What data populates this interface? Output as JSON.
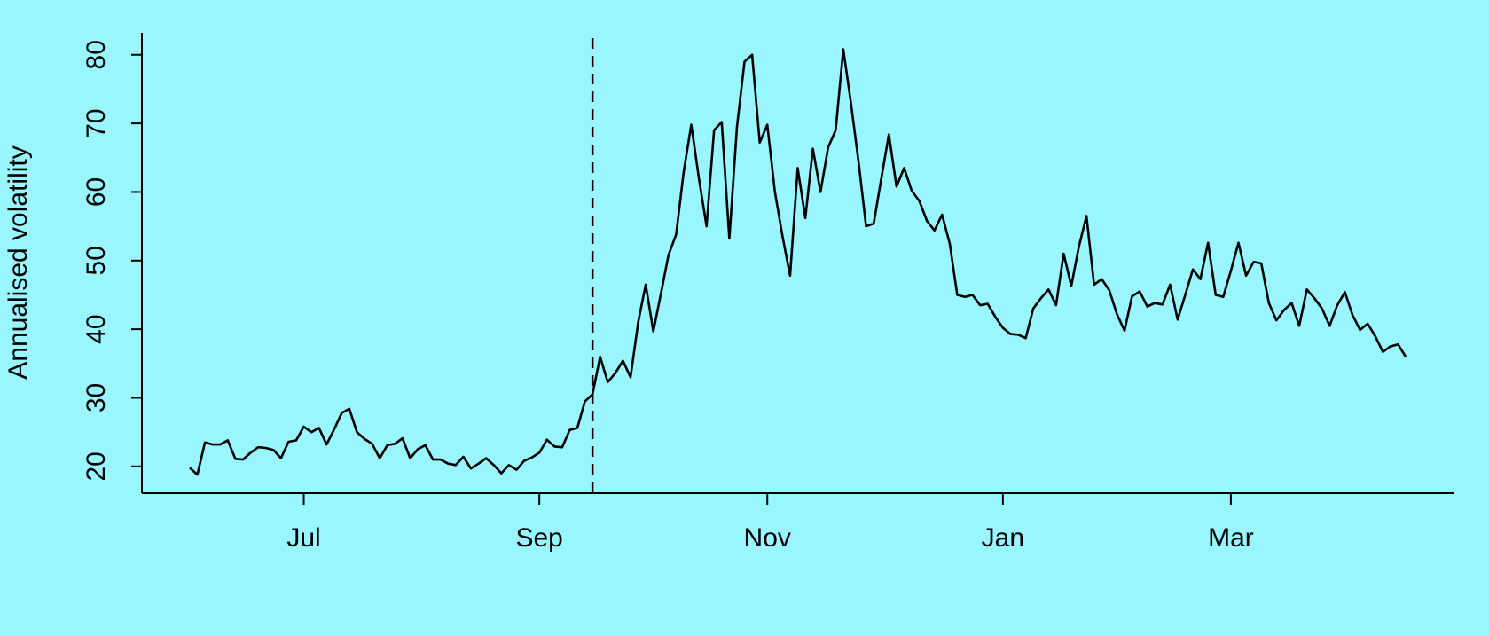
{
  "chart_data": {
    "type": "line",
    "y_label": "Annualised volatility",
    "categories": [
      null,
      null,
      null,
      null,
      null,
      null,
      null,
      null,
      null,
      null,
      null,
      null,
      null,
      null,
      null,
      "Jul",
      null,
      null,
      null,
      null,
      null,
      null,
      null,
      null,
      null,
      null,
      null,
      null,
      null,
      null,
      null,
      null,
      null,
      null,
      null,
      null,
      null,
      null,
      null,
      null,
      null,
      null,
      null,
      null,
      null,
      null,
      "Sep",
      null,
      null,
      null,
      null,
      null,
      null,
      null,
      null,
      null,
      null,
      null,
      null,
      null,
      null,
      null,
      null,
      null,
      null,
      null,
      null,
      null,
      null,
      null,
      null,
      null,
      null,
      null,
      null,
      null,
      "Nov",
      null,
      null,
      null,
      null,
      null,
      null,
      null,
      null,
      null,
      null,
      null,
      null,
      null,
      null,
      null,
      null,
      null,
      null,
      null,
      null,
      null,
      null,
      null,
      null,
      null,
      null,
      null,
      null,
      null,
      null,
      "Jan",
      null,
      null,
      null,
      null,
      null,
      null,
      null,
      null,
      null,
      null,
      null,
      null,
      null,
      null,
      null,
      null,
      null,
      null,
      null,
      null,
      null,
      null,
      null,
      null,
      null,
      null,
      null,
      null,
      null,
      "Mar",
      null,
      null,
      null,
      null,
      null,
      null,
      null,
      null,
      null,
      null,
      null,
      null,
      null,
      null,
      null,
      null,
      null,
      null,
      null,
      null,
      null,
      null,
      null
    ],
    "values": [
      19.8,
      18.8,
      23.5,
      23.2,
      23.2,
      23.8,
      21.1,
      21,
      22,
      22.8,
      22.7,
      22.4,
      21.2,
      23.6,
      23.8,
      25.8,
      25,
      25.6,
      23.2,
      25.4,
      27.8,
      28.4,
      25,
      24,
      23.3,
      21.2,
      23.1,
      23.3,
      24.1,
      21.2,
      22.5,
      23.1,
      21,
      21,
      20.4,
      20.2,
      21.4,
      19.7,
      20.4,
      21.2,
      20.2,
      19,
      20.2,
      19.5,
      20.8,
      21.3,
      22,
      23.9,
      22.9,
      22.8,
      25.3,
      25.6,
      29.5,
      30.5,
      36,
      32.3,
      33.6,
      35.4,
      33,
      41,
      46.5,
      39.7,
      45.2,
      50.8,
      53.8,
      63,
      69.8,
      62,
      55,
      69,
      70.2,
      53.2,
      69.5,
      79,
      80,
      67.2,
      69.8,
      60,
      53.5,
      47.8,
      63.5,
      56.2,
      66.3,
      60,
      66.5,
      69,
      80.8,
      73,
      64.5,
      55,
      55.4,
      62,
      68.4,
      60.8,
      63.5,
      60.2,
      58.7,
      55.8,
      54.4,
      56.7,
      52.5,
      45,
      44.7,
      45,
      43.5,
      43.7,
      41.8,
      40.2,
      39.3,
      39.2,
      38.7,
      43,
      44.5,
      45.8,
      43.5,
      51,
      46.3,
      52,
      56.5,
      46.5,
      47.3,
      45.7,
      42.2,
      39.8,
      44.8,
      45.5,
      43.3,
      43.8,
      43.6,
      46.5,
      41.4,
      45,
      48.7,
      47.3,
      52.6,
      45,
      44.7,
      48.5,
      52.6,
      47.8,
      49.8,
      49.6,
      43.8,
      41.3,
      42.8,
      43.8,
      40.5,
      45.8,
      44.5,
      43,
      40.5,
      43.5,
      45.4,
      42.1,
      39.9,
      40.8,
      39,
      36.7,
      37.5,
      37.8,
      36
    ],
    "color": "#000000",
    "vlines": [
      53
    ],
    "ylim": [
      16.1,
      83.2
    ],
    "yticks": [
      20,
      30,
      40,
      50,
      60,
      70,
      80
    ],
    "background": "#99f5fe",
    "grid": false
  }
}
